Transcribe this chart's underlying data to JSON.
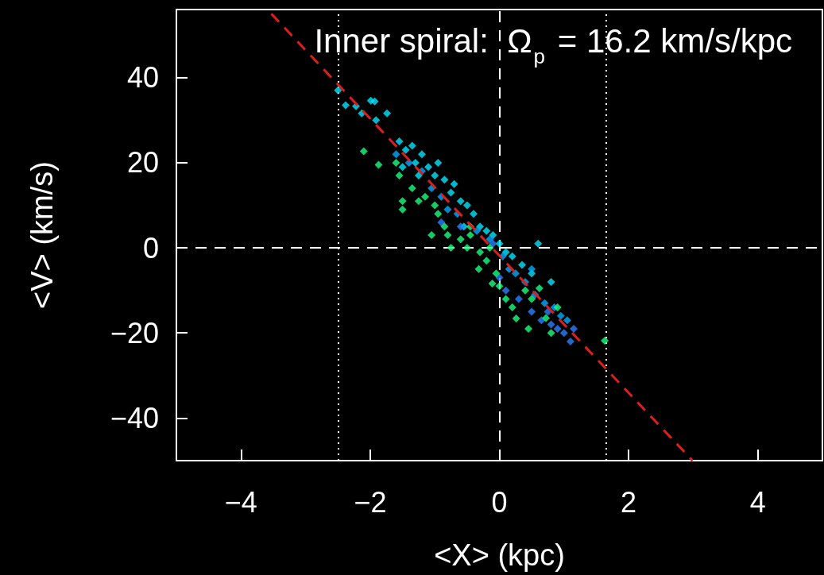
{
  "chart_data": {
    "type": "scatter",
    "xlabel": "<X> (kpc)",
    "ylabel": "<V> (km/s)",
    "annotations": [
      "Inner spiral:  Ω$_{p}$ = 16.2 km/s/kpc"
    ],
    "xlim": [
      -5,
      5
    ],
    "xticks": [
      -4,
      -2,
      0,
      2,
      4
    ],
    "ylim": [
      -50,
      56
    ],
    "yticks": [
      -40,
      -20,
      0,
      20,
      40
    ],
    "grid": false,
    "marker": "diamond",
    "series": [
      {
        "color": "#00e5ff",
        "x": [
          -2.5,
          -2.38,
          -2.22,
          -1.99,
          -1.93,
          -2.13,
          -1.74,
          -1.91,
          -1.55,
          -1.45,
          -1.35,
          -1.3,
          -1.2,
          -1.1,
          -1.0,
          -0.95,
          -0.85,
          -0.75,
          -0.7,
          -0.6,
          -0.5,
          -0.4,
          -0.3,
          -0.2,
          -0.1,
          0,
          0.1,
          0.2,
          0.35,
          0.5,
          0.6,
          0.8,
          -1.5,
          -1.25,
          -0.55
        ],
        "values": [
          37,
          33.5,
          33.3,
          34.6,
          34.4,
          31.6,
          31.6,
          30,
          25,
          23,
          24,
          20,
          22,
          19,
          17,
          20,
          16,
          13,
          15,
          11,
          10,
          8,
          5,
          4,
          3,
          1,
          -1,
          -2,
          -4,
          -6,
          1,
          -8,
          19,
          17,
          5
        ]
      },
      {
        "color": "#00aaff",
        "x": [
          -1.6,
          -1.4,
          -1.2,
          -1.05,
          -0.9,
          -0.8,
          -0.65,
          -0.35,
          -0.15,
          0.05,
          0.15,
          0.25,
          0.4,
          0.55,
          0.7,
          0.85,
          0.95,
          1.05,
          0.5
        ],
        "values": [
          22,
          20,
          18,
          14,
          12,
          9,
          8,
          4,
          2,
          -2,
          -5,
          -6,
          -8,
          -11,
          -13,
          -14,
          -16,
          -17,
          -5
        ]
      },
      {
        "color": "#2a7fff",
        "x": [
          -0.9,
          -0.6,
          -0.1,
          0.0,
          0.1,
          0.3,
          0.5,
          0.65,
          0.8,
          0.9,
          1.0,
          1.1,
          1.15,
          0.75
        ],
        "values": [
          6,
          5,
          1,
          -7,
          -10,
          -12,
          -15,
          -17,
          -18,
          -19,
          -20,
          -22,
          -19,
          -15
        ]
      },
      {
        "color": "#19ff80",
        "x": [
          -2.1,
          -1.87,
          -1.5,
          -1.5,
          -1.6,
          -1.55,
          -1.35,
          -1.25,
          -1.15,
          -1.0,
          -0.95,
          -0.85,
          -0.8,
          -0.75,
          -0.6,
          -0.5,
          -0.45,
          -0.3,
          -0.2,
          -0.15,
          -0.05,
          0.0,
          0.1,
          0.2,
          0.26,
          0.4,
          0.5,
          0.62,
          0.72,
          0.8,
          1.63,
          -1.05,
          -0.45,
          0.45,
          0.9,
          -0.11,
          -0.32
        ],
        "values": [
          22.7,
          19.5,
          11,
          9,
          20,
          17,
          14,
          11,
          12,
          10,
          8,
          5,
          3,
          0,
          2,
          0,
          3,
          -1,
          -3,
          0,
          -6,
          -9,
          -12,
          -14,
          -16.6,
          -10,
          -12,
          -9.5,
          -16.5,
          -20,
          -21.8,
          3,
          5,
          -19,
          -14,
          -8.4,
          -5
        ]
      },
      {
        "type": "line",
        "color": "#dd1e1e",
        "marker": "none",
        "line_style": "dashed",
        "x": [
          -3.53,
          2.99
        ],
        "values": [
          55,
          -50
        ]
      }
    ],
    "ref_lines": [
      {
        "axis": "y",
        "value": 0,
        "color": "#ffffff",
        "line_style": "dashed"
      },
      {
        "axis": "x",
        "value": 0,
        "color": "#ffffff",
        "line_style": "dashed"
      },
      {
        "axis": "x",
        "value": -2.5,
        "color": "#ffffff",
        "line_style": "dotted"
      },
      {
        "axis": "x",
        "value": 1.65,
        "color": "#ffffff",
        "line_style": "dotted"
      }
    ]
  }
}
